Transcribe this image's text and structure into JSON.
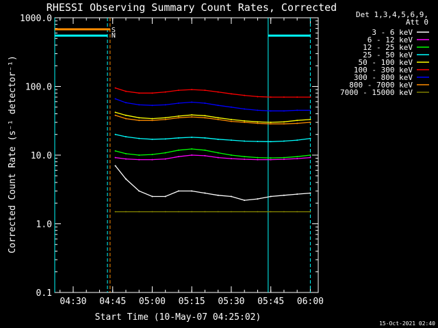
{
  "chart_data": {
    "type": "line",
    "title": "RHESSI Observing Summary Count Rates, Corrected",
    "xlabel": "Start Time (10-May-07 04:25:02)",
    "ylabel": "Corrected Count Rate (s⁻¹ detector⁻¹)",
    "yscale": "log",
    "ylim": [
      0.1,
      1000
    ],
    "xlim": [
      "04:23",
      "06:03"
    ],
    "yticks": [
      "1000.0",
      "100.0",
      "10.0",
      "1.0",
      "0.1"
    ],
    "xticks": [
      "04:30",
      "04:45",
      "05:00",
      "05:15",
      "05:30",
      "05:45",
      "06:00"
    ],
    "legend_header": [
      "Det 1,3,4,5,6,9,",
      "Att 0"
    ],
    "legend_position": "top-right",
    "timestamp": "15-Oct-2021 02:40",
    "markers": [
      {
        "label": "S",
        "color": "#ff8c00"
      },
      {
        "label": "N",
        "color": "#00ffff"
      }
    ],
    "events": [
      {
        "kind": "night",
        "color": "#00ffff",
        "start": "04:23",
        "end": "04:43",
        "level": 550
      },
      {
        "kind": "night",
        "color": "#00ffff",
        "start": "05:44",
        "end": "06:00",
        "level": 550
      },
      {
        "kind": "saa",
        "color": "#ff8c00",
        "start": "04:23",
        "end": "04:44",
        "level": 680
      }
    ],
    "vlines": [
      {
        "time": "04:23",
        "color": "#00ffff",
        "style": "solid"
      },
      {
        "time": "04:43",
        "color": "#00ffff",
        "style": "dashed"
      },
      {
        "time": "04:44",
        "color": "#ff8c00",
        "style": "dashed"
      },
      {
        "time": "05:44",
        "color": "#00ffff",
        "style": "solid"
      },
      {
        "time": "06:00",
        "color": "#00ffff",
        "style": "dashed"
      }
    ],
    "x": [
      "04:46",
      "04:50",
      "04:55",
      "05:00",
      "05:05",
      "05:10",
      "05:15",
      "05:20",
      "05:25",
      "05:30",
      "05:35",
      "05:40",
      "05:45",
      "05:50",
      "05:55",
      "06:00"
    ],
    "series": [
      {
        "name": "3 - 6 keV",
        "color": "#ffffff",
        "values": [
          7,
          4.5,
          3,
          2.5,
          2.5,
          3,
          3,
          2.8,
          2.6,
          2.5,
          2.2,
          2.3,
          2.5,
          2.6,
          2.7,
          2.8
        ]
      },
      {
        "name": "6 - 12 keV",
        "color": "#ff00ff",
        "values": [
          9.2,
          8.8,
          8.6,
          8.6,
          8.8,
          9.5,
          10,
          9.8,
          9.2,
          8.9,
          8.7,
          8.6,
          8.6,
          8.7,
          8.9,
          9.2
        ]
      },
      {
        "name": "12 - 25 keV",
        "color": "#00ff00",
        "values": [
          11.5,
          10.5,
          10,
          10.2,
          10.8,
          11.8,
          12.3,
          11.8,
          10.8,
          10,
          9.5,
          9.2,
          9.1,
          9.2,
          9.5,
          10
        ]
      },
      {
        "name": "25 - 50 keV",
        "color": "#00ffff",
        "values": [
          20,
          18.5,
          17.5,
          17,
          17.2,
          17.8,
          18.2,
          17.8,
          17,
          16.5,
          16,
          15.8,
          15.7,
          16,
          16.5,
          17.5
        ]
      },
      {
        "name": "50 - 100 keV",
        "color": "#ffff00",
        "values": [
          42,
          38,
          35,
          34,
          35,
          37,
          38.5,
          37.5,
          35,
          33,
          31.5,
          30.5,
          30,
          30.5,
          32,
          33
        ]
      },
      {
        "name": "100 - 300 keV",
        "color": "#ff0000",
        "values": [
          95,
          85,
          80,
          80,
          83,
          88,
          90,
          88,
          83,
          78,
          74,
          71,
          70,
          70,
          70,
          70
        ]
      },
      {
        "name": "300 - 800 keV",
        "color": "#0000ff",
        "values": [
          66,
          58,
          54,
          53,
          54,
          57,
          59,
          57,
          53,
          50,
          47,
          45,
          44,
          44,
          45,
          45
        ]
      },
      {
        "name": "800 - 7000 keV",
        "color": "#ff8c00",
        "values": [
          38,
          34,
          32,
          32,
          33,
          35,
          36,
          35,
          33,
          31,
          30,
          29,
          28.5,
          28.5,
          29,
          30
        ]
      },
      {
        "name": "7000 - 15000 keV",
        "color": "#808000",
        "values": [
          1.5,
          1.5,
          1.5,
          1.5,
          1.5,
          1.5,
          1.5,
          1.5,
          1.5,
          1.5,
          1.5,
          1.5,
          1.5,
          1.5,
          1.5,
          1.5
        ]
      }
    ]
  }
}
